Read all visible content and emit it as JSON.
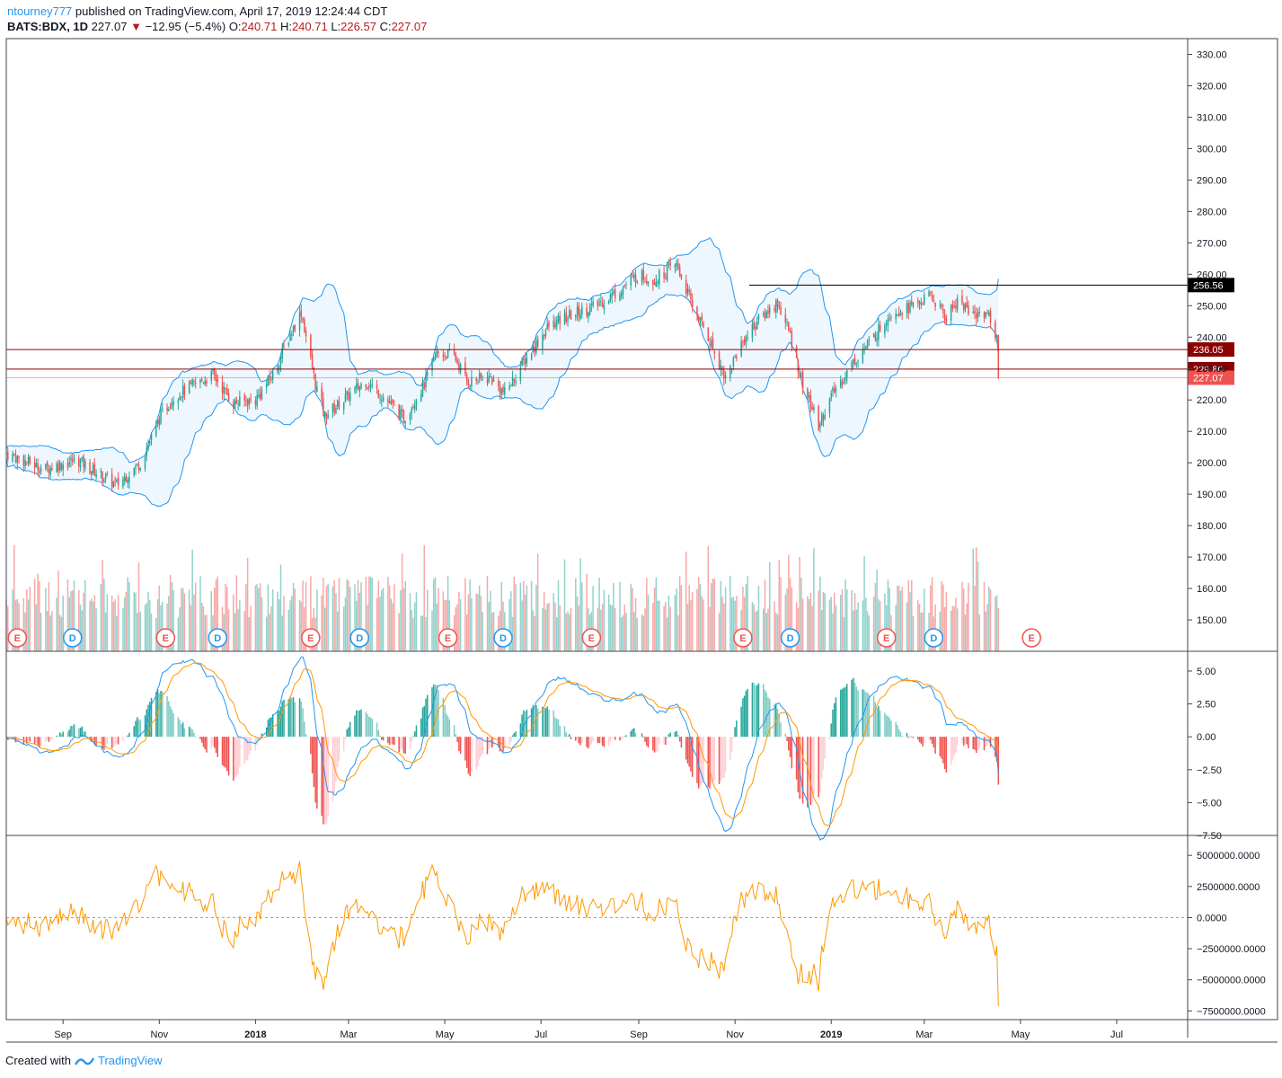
{
  "header": {
    "author": "ntourney777",
    "published": "published on TradingView.com, April 17, 2019 12:24:44 CDT",
    "symbol": "BATS:BDX, 1D",
    "last": "227.07",
    "change": "−12.95 (−5.4%)",
    "o_label": "O:",
    "o_val": "240.71",
    "h_label": "H:",
    "h_val": "240.71",
    "l_label": "L:",
    "l_val": "226.57",
    "c_label": "C:",
    "c_val": "227.07"
  },
  "footer": {
    "created": "Created with",
    "brand": "TradingView"
  },
  "colors": {
    "up": "#26a69a",
    "down": "#ef5350",
    "band": "#2196f3",
    "signal": "#ff9800",
    "hline_red": "#8b0000",
    "hline_black": "#000000"
  },
  "chart_data": [
    {
      "type": "candlestick",
      "name": "BATS:BDX price",
      "ylim": [
        140,
        335
      ],
      "yticks": [
        "330.00",
        "320.00",
        "310.00",
        "300.00",
        "290.00",
        "280.00",
        "270.00",
        "260.00",
        "250.00",
        "240.00",
        "230.00",
        "220.00",
        "210.00",
        "200.00",
        "190.00",
        "180.00",
        "170.00",
        "160.00",
        "150.00"
      ],
      "xticks": [
        "Sep",
        "Nov",
        "2018",
        "Mar",
        "May",
        "Jul",
        "Sep",
        "Nov",
        "2019",
        "Mar",
        "May",
        "Jul"
      ],
      "xtick_dates": [
        "2017-09-01",
        "2017-11-01",
        "2018-01-01",
        "2018-03-01",
        "2018-05-01",
        "2018-07-01",
        "2018-09-01",
        "2018-11-01",
        "2019-01-01",
        "2019-03-01",
        "2019-05-01",
        "2019-07-01"
      ],
      "x_range": [
        "2017-07-27",
        "2019-08-15"
      ],
      "price_path": [
        {
          "date": "2017-07-27",
          "close": 203
        },
        {
          "date": "2017-08-20",
          "close": 198
        },
        {
          "date": "2017-09-10",
          "close": 201
        },
        {
          "date": "2017-09-25",
          "close": 196
        },
        {
          "date": "2017-10-05",
          "close": 193
        },
        {
          "date": "2017-10-20",
          "close": 200
        },
        {
          "date": "2017-11-01",
          "close": 214
        },
        {
          "date": "2017-11-10",
          "close": 221
        },
        {
          "date": "2017-11-20",
          "close": 224
        },
        {
          "date": "2017-12-05",
          "close": 228
        },
        {
          "date": "2017-12-18",
          "close": 219
        },
        {
          "date": "2018-01-01",
          "close": 220
        },
        {
          "date": "2018-01-12",
          "close": 228
        },
        {
          "date": "2018-01-24",
          "close": 242
        },
        {
          "date": "2018-01-30",
          "close": 248
        },
        {
          "date": "2018-02-08",
          "close": 225
        },
        {
          "date": "2018-02-14",
          "close": 215
        },
        {
          "date": "2018-02-28",
          "close": 221
        },
        {
          "date": "2018-03-12",
          "close": 226
        },
        {
          "date": "2018-03-25",
          "close": 220
        },
        {
          "date": "2018-04-05",
          "close": 214
        },
        {
          "date": "2018-04-18",
          "close": 225
        },
        {
          "date": "2018-04-26",
          "close": 235
        },
        {
          "date": "2018-05-07",
          "close": 234
        },
        {
          "date": "2018-05-15",
          "close": 226
        },
        {
          "date": "2018-05-30",
          "close": 227
        },
        {
          "date": "2018-06-08",
          "close": 222
        },
        {
          "date": "2018-06-20",
          "close": 232
        },
        {
          "date": "2018-07-05",
          "close": 243
        },
        {
          "date": "2018-07-20",
          "close": 247
        },
        {
          "date": "2018-08-05",
          "close": 250
        },
        {
          "date": "2018-08-20",
          "close": 255
        },
        {
          "date": "2018-09-01",
          "close": 260
        },
        {
          "date": "2018-09-10",
          "close": 258
        },
        {
          "date": "2018-09-25",
          "close": 263
        },
        {
          "date": "2018-10-05",
          "close": 250
        },
        {
          "date": "2018-10-15",
          "close": 240
        },
        {
          "date": "2018-10-26",
          "close": 227
        },
        {
          "date": "2018-11-05",
          "close": 238
        },
        {
          "date": "2018-11-15",
          "close": 245
        },
        {
          "date": "2018-11-28",
          "close": 251
        },
        {
          "date": "2018-12-05",
          "close": 242
        },
        {
          "date": "2018-12-14",
          "close": 225
        },
        {
          "date": "2018-12-24",
          "close": 212
        },
        {
          "date": "2019-01-02",
          "close": 222
        },
        {
          "date": "2019-01-15",
          "close": 232
        },
        {
          "date": "2019-01-28",
          "close": 240
        },
        {
          "date": "2019-02-08",
          "close": 248
        },
        {
          "date": "2019-02-22",
          "close": 250
        },
        {
          "date": "2019-03-05",
          "close": 253
        },
        {
          "date": "2019-03-15",
          "close": 246
        },
        {
          "date": "2019-03-22",
          "close": 252
        },
        {
          "date": "2019-04-01",
          "close": 247
        },
        {
          "date": "2019-04-10",
          "close": 248
        },
        {
          "date": "2019-04-16",
          "close": 240
        },
        {
          "date": "2019-04-17",
          "close": 227.07
        }
      ],
      "bollinger": "upper/lower bands around price",
      "hlines": [
        {
          "value": 256.56,
          "label": "256.56",
          "color": "#000000",
          "from": "2018-11-10"
        },
        {
          "value": 236.05,
          "label": "236.05",
          "color": "#8b0000",
          "from": "2017-07-27"
        },
        {
          "value": 229.8,
          "label": "229.80",
          "color": "#8b0000",
          "from": "2017-07-27"
        }
      ],
      "last_price": {
        "value": 227.07,
        "label": "227.07"
      },
      "events": [
        {
          "date": "2017-08-03",
          "type": "E"
        },
        {
          "date": "2017-09-07",
          "type": "D"
        },
        {
          "date": "2017-11-05",
          "type": "E"
        },
        {
          "date": "2017-12-08",
          "type": "D"
        },
        {
          "date": "2018-02-05",
          "type": "E"
        },
        {
          "date": "2018-03-08",
          "type": "D"
        },
        {
          "date": "2018-05-03",
          "type": "E"
        },
        {
          "date": "2018-06-07",
          "type": "D"
        },
        {
          "date": "2018-08-02",
          "type": "E"
        },
        {
          "date": "2018-11-06",
          "type": "E"
        },
        {
          "date": "2018-12-06",
          "type": "D"
        },
        {
          "date": "2019-02-05",
          "type": "E"
        },
        {
          "date": "2019-03-07",
          "type": "D"
        },
        {
          "date": "2019-05-08",
          "type": "E"
        }
      ]
    },
    {
      "type": "bar",
      "name": "Volume",
      "note": "volume histogram overlaid at bottom of price pane, colored by candle direction"
    },
    {
      "type": "line",
      "name": "MACD",
      "ylim": [
        -7.5,
        6.5
      ],
      "yticks": [
        "5.00",
        "2.50",
        "0.00",
        "−2.50",
        "−5.00",
        "−7.50"
      ],
      "series": [
        {
          "name": "",
          "color": "#2196f3"
        },
        {
          "name": "",
          "color": "#ff9800"
        }
      ],
      "histogram": true
    },
    {
      "type": "line",
      "name": "Oscillator",
      "ylim": [
        -8200000,
        6600000
      ],
      "yticks": [
        "5000000.0000",
        "2500000.0000",
        "0.0000",
        "−2500000.0000",
        "−5000000.0000",
        "−7500000.0000"
      ],
      "series": [
        {
          "name": "",
          "color": "#ff9800"
        }
      ],
      "zero_line": "dashed"
    }
  ]
}
